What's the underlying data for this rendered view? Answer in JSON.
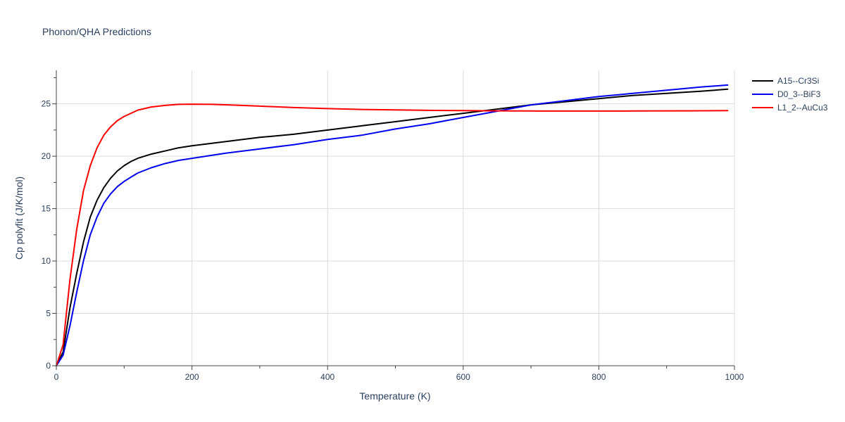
{
  "chart_data": {
    "type": "line",
    "title": "Phonon/QHA Predictions",
    "xlabel": "Temperature (K)",
    "ylabel": "Cp polyfit (J/K/mol)",
    "xlim": [
      0,
      1000
    ],
    "ylim": [
      0,
      28.2
    ],
    "xticks": [
      0,
      200,
      400,
      600,
      800,
      1000
    ],
    "yticks": [
      0,
      5,
      10,
      15,
      20,
      25
    ],
    "grid": true,
    "legend_position": "top-right",
    "series": [
      {
        "name": "A15--Cr3Si",
        "color": "#000000",
        "x": [
          0,
          10,
          20,
          30,
          40,
          50,
          60,
          70,
          80,
          90,
          100,
          110,
          120,
          140,
          160,
          180,
          200,
          250,
          300,
          350,
          400,
          450,
          500,
          550,
          600,
          650,
          700,
          750,
          800,
          850,
          900,
          950,
          990
        ],
        "y": [
          0,
          1.3,
          5.5,
          8.8,
          11.8,
          14.2,
          15.8,
          17.0,
          17.9,
          18.6,
          19.1,
          19.5,
          19.8,
          20.2,
          20.5,
          20.8,
          21.0,
          21.4,
          21.8,
          22.1,
          22.5,
          22.9,
          23.3,
          23.7,
          24.1,
          24.5,
          24.9,
          25.2,
          25.5,
          25.8,
          26.0,
          26.2,
          26.4
        ]
      },
      {
        "name": "D0_3--BiF3",
        "color": "#0000ee",
        "x": [
          0,
          10,
          20,
          30,
          40,
          50,
          60,
          70,
          80,
          90,
          100,
          110,
          120,
          140,
          160,
          180,
          200,
          250,
          300,
          350,
          400,
          450,
          500,
          550,
          600,
          650,
          700,
          750,
          800,
          850,
          900,
          950,
          990
        ],
        "y": [
          0,
          1.0,
          3.8,
          7.0,
          10.0,
          12.5,
          14.2,
          15.5,
          16.4,
          17.1,
          17.6,
          18.0,
          18.4,
          18.9,
          19.3,
          19.6,
          19.8,
          20.3,
          20.7,
          21.1,
          21.6,
          22.0,
          22.6,
          23.1,
          23.7,
          24.3,
          24.9,
          25.3,
          25.7,
          26.0,
          26.3,
          26.6,
          26.8
        ]
      },
      {
        "name": "L1_2--AuCu3",
        "color": "#ff0000",
        "x": [
          0,
          10,
          20,
          30,
          40,
          50,
          60,
          70,
          80,
          90,
          100,
          110,
          120,
          140,
          160,
          180,
          200,
          230,
          260,
          300,
          350,
          400,
          450,
          500,
          550,
          600,
          650,
          700,
          750,
          800,
          850,
          900,
          950,
          990
        ],
        "y": [
          0,
          2.0,
          8.2,
          13.0,
          16.7,
          19.1,
          20.8,
          22.0,
          22.8,
          23.4,
          23.8,
          24.1,
          24.4,
          24.7,
          24.85,
          24.95,
          24.97,
          24.95,
          24.88,
          24.78,
          24.65,
          24.55,
          24.47,
          24.42,
          24.38,
          24.35,
          24.33,
          24.32,
          24.31,
          24.31,
          24.32,
          24.33,
          24.34,
          24.35
        ]
      }
    ]
  }
}
